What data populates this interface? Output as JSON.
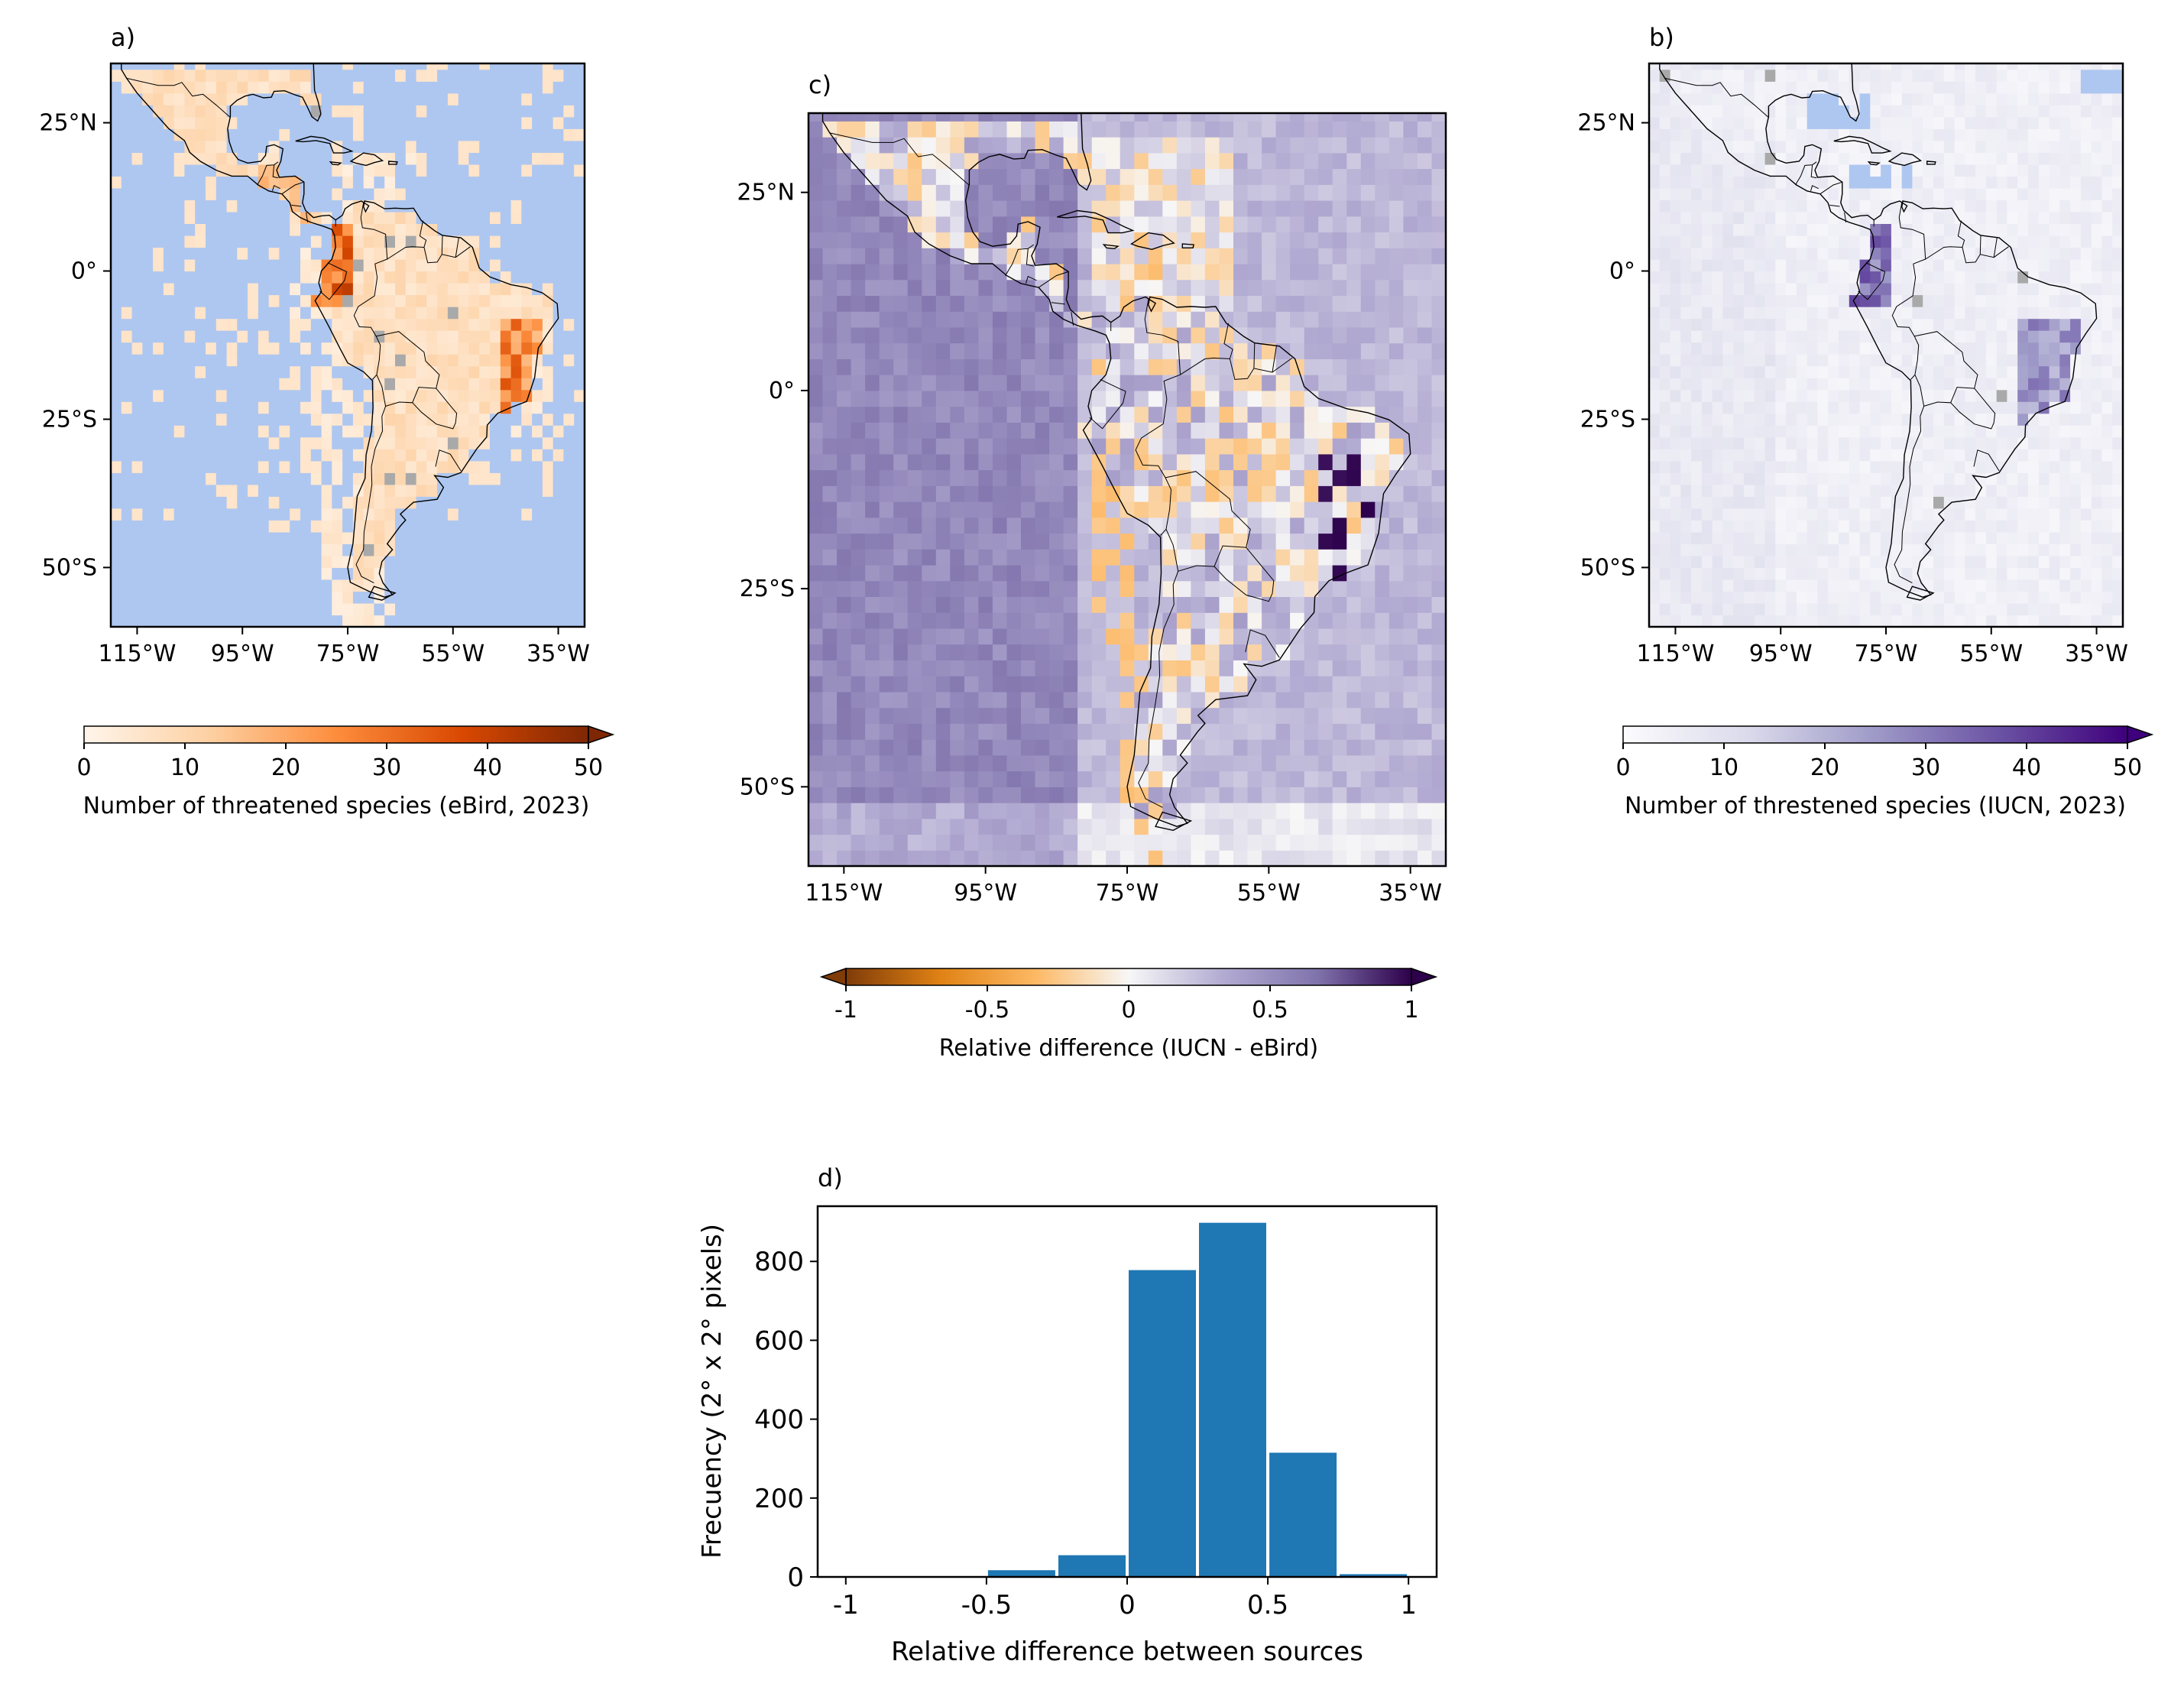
{
  "panels": {
    "a": {
      "label": "a)",
      "lon_ticks": [
        "115°W",
        "95°W",
        "75°W",
        "55°W",
        "35°W"
      ],
      "lat_ticks": [
        "25°N",
        "0°",
        "25°S",
        "50°S"
      ],
      "colorbar": {
        "ticks": [
          "0",
          "10",
          "20",
          "30",
          "40",
          "50"
        ],
        "label": "Number of threatened species (eBird, 2023)",
        "range": [
          0,
          50
        ],
        "extend": "max",
        "colors": [
          "#fff5eb",
          "#fdd0a2",
          "#fd8d3c",
          "#d94801",
          "#7f2704"
        ]
      }
    },
    "b": {
      "label": "b)",
      "lon_ticks": [
        "115°W",
        "95°W",
        "75°W",
        "55°W",
        "35°W"
      ],
      "lat_ticks": [
        "25°N",
        "0°",
        "25°S",
        "50°S"
      ],
      "colorbar": {
        "ticks": [
          "0",
          "10",
          "20",
          "30",
          "40",
          "50"
        ],
        "label": "Number of threstened species (IUCN, 2023)",
        "range": [
          0,
          50
        ],
        "extend": "max",
        "colors": [
          "#fcfbfd",
          "#dadaeb",
          "#9e9ac8",
          "#6a51a3",
          "#3f007d"
        ]
      }
    },
    "c": {
      "label": "c)",
      "lon_ticks": [
        "115°W",
        "95°W",
        "75°W",
        "55°W",
        "35°W"
      ],
      "lat_ticks": [
        "25°N",
        "0°",
        "25°S",
        "50°S"
      ],
      "colorbar": {
        "ticks": [
          "-1",
          "-0.5",
          "0",
          "0.5",
          "1"
        ],
        "label": "Relative difference (IUCN - eBird)",
        "range": [
          -1,
          1
        ],
        "extend": "both",
        "colors": [
          "#7f3b08",
          "#e08214",
          "#fdb863",
          "#f7f7f7",
          "#b2abd2",
          "#8073ac",
          "#2d004b"
        ]
      }
    }
  },
  "colors": {
    "ocean_no_data": "#aec7f0",
    "missing_gray": "#a9a9a9",
    "bar": "#1f77b4"
  },
  "chart_data": {
    "type": "bar",
    "label": "d)",
    "xlabel": "Relative difference between sources",
    "ylabel": "Frecuency (2° x 2° pixels)",
    "x_ticks": [
      "-1",
      "-0.5",
      "0",
      "0.5",
      "1"
    ],
    "y_ticks": [
      "0",
      "200",
      "400",
      "600",
      "800"
    ],
    "xlim": [
      -1.1,
      1.1
    ],
    "ylim": [
      0,
      940
    ],
    "bin_width": 0.25,
    "bins": [
      {
        "left": -1.0,
        "value": 1
      },
      {
        "left": -0.75,
        "value": 1
      },
      {
        "left": -0.5,
        "value": 17
      },
      {
        "left": -0.25,
        "value": 55
      },
      {
        "left": 0.0,
        "value": 778
      },
      {
        "left": 0.25,
        "value": 898
      },
      {
        "left": 0.5,
        "value": 315
      },
      {
        "left": 0.75,
        "value": 7
      }
    ]
  }
}
